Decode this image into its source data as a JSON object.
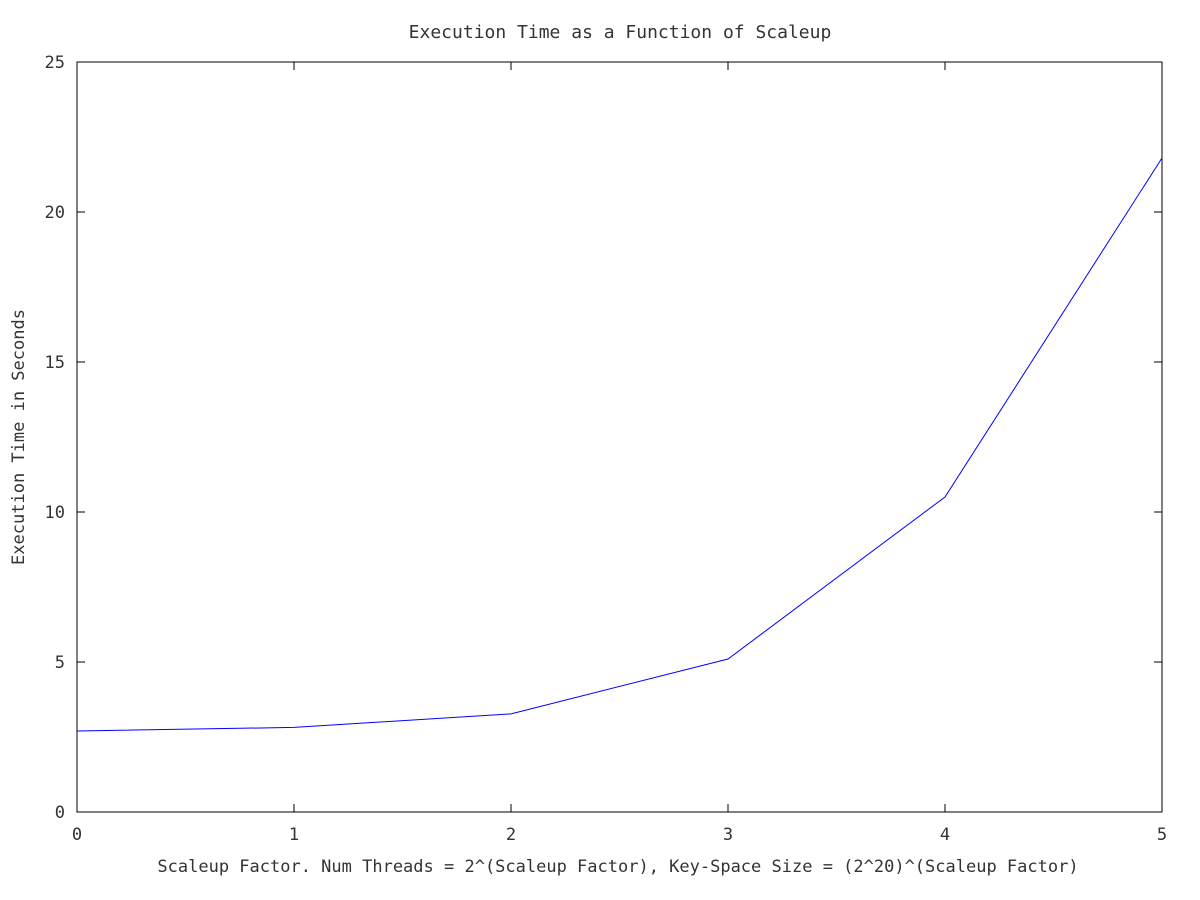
{
  "chart_data": {
    "type": "line",
    "title": "Execution Time as a Function of Scaleup",
    "xlabel": "Scaleup Factor. Num Threads = 2^(Scaleup Factor), Key-Space Size = (2^20)^(Scaleup Factor)",
    "ylabel": "Execution Time in Seconds",
    "xlim": [
      0,
      5
    ],
    "ylim": [
      0,
      25
    ],
    "x_ticks": [
      "0",
      "1",
      "2",
      "3",
      "4",
      "5"
    ],
    "y_ticks": [
      "0",
      "5",
      "10",
      "15",
      "20",
      "25"
    ],
    "grid": false,
    "series": [
      {
        "color": "#0000ff",
        "x": [
          0,
          1,
          2,
          3,
          4,
          5
        ],
        "y": [
          2.7,
          2.82,
          3.27,
          5.1,
          10.5,
          21.8
        ]
      }
    ]
  }
}
